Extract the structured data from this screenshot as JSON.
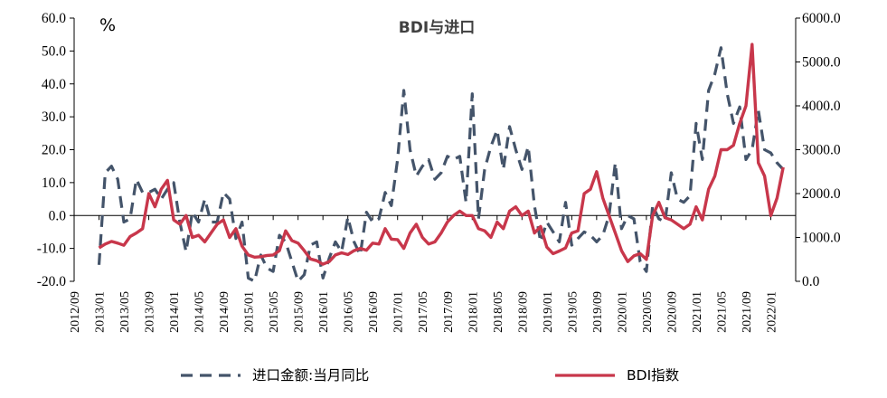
{
  "chart_data": {
    "type": "line",
    "title": "BDI与进口",
    "left_unit": "%",
    "colors": {
      "import": "#44546a",
      "bdi": "#c8374b"
    },
    "left_axis": {
      "min": -20,
      "max": 60,
      "step": 10,
      "ticks": [
        "-20.0",
        "-10.0",
        "0.0",
        "10.0",
        "20.0",
        "30.0",
        "40.0",
        "50.0",
        "60.0"
      ]
    },
    "right_axis": {
      "min": 0,
      "max": 6000,
      "step": 1000,
      "ticks": [
        "0.0",
        "1000.0",
        "2000.0",
        "3000.0",
        "4000.0",
        "5000.0",
        "6000.0"
      ]
    },
    "x_ticks": [
      "2012/09",
      "2013/01",
      "2013/05",
      "2013/09",
      "2014/01",
      "2014/05",
      "2014/09",
      "2015/01",
      "2015/05",
      "2015/09",
      "2016/01",
      "2016/05",
      "2016/09",
      "2017/01",
      "2017/05",
      "2017/09",
      "2018/01",
      "2018/05",
      "2018/09",
      "2019/01",
      "2019/05",
      "2019/09",
      "2020/01",
      "2020/05",
      "2020/09",
      "2021/01",
      "2021/05",
      "2021/09",
      "2022/01"
    ],
    "legend": [
      {
        "label": "进口金额:当月同比",
        "style": "dashed",
        "series": "import"
      },
      {
        "label": "BDI指数",
        "style": "solid",
        "series": "bdi"
      }
    ],
    "grid": false,
    "series": [
      {
        "name": "进口金额:当月同比",
        "axis": "left",
        "points": [
          [
            "2013/01",
            -15
          ],
          [
            "2013/02",
            13
          ],
          [
            "2013/03",
            15
          ],
          [
            "2013/04",
            11
          ],
          [
            "2013/05",
            -2
          ],
          [
            "2013/06",
            -1
          ],
          [
            "2013/07",
            11
          ],
          [
            "2013/08",
            7
          ],
          [
            "2013/09",
            7
          ],
          [
            "2013/10",
            8
          ],
          [
            "2013/11",
            5
          ],
          [
            "2013/12",
            8
          ],
          [
            "2014/01",
            10
          ],
          [
            "2014/02",
            -2
          ],
          [
            "2014/03",
            -11
          ],
          [
            "2014/04",
            1
          ],
          [
            "2014/05",
            -2
          ],
          [
            "2014/06",
            5
          ],
          [
            "2014/07",
            -2
          ],
          [
            "2014/08",
            -2
          ],
          [
            "2014/09",
            7
          ],
          [
            "2014/10",
            5
          ],
          [
            "2014/11",
            -7
          ],
          [
            "2014/12",
            -2
          ],
          [
            "2015/01",
            -19
          ],
          [
            "2015/02",
            -20
          ],
          [
            "2015/03",
            -12
          ],
          [
            "2015/04",
            -16
          ],
          [
            "2015/05",
            -17
          ],
          [
            "2015/06",
            -6
          ],
          [
            "2015/07",
            -8
          ],
          [
            "2015/08",
            -14
          ],
          [
            "2015/09",
            -20
          ],
          [
            "2015/10",
            -18
          ],
          [
            "2015/11",
            -9
          ],
          [
            "2015/12",
            -8
          ],
          [
            "2016/01",
            -19
          ],
          [
            "2016/02",
            -13
          ],
          [
            "2016/03",
            -8
          ],
          [
            "2016/04",
            -11
          ],
          [
            "2016/05",
            -0.5
          ],
          [
            "2016/06",
            -8
          ],
          [
            "2016/07",
            -12
          ],
          [
            "2016/08",
            1
          ],
          [
            "2016/09",
            -2
          ],
          [
            "2016/10",
            -1
          ],
          [
            "2016/11",
            7
          ],
          [
            "2016/12",
            3
          ],
          [
            "2017/01",
            17
          ],
          [
            "2017/02",
            38
          ],
          [
            "2017/03",
            20
          ],
          [
            "2017/04",
            12
          ],
          [
            "2017/05",
            15
          ],
          [
            "2017/06",
            17
          ],
          [
            "2017/07",
            11
          ],
          [
            "2017/08",
            13
          ],
          [
            "2017/09",
            18
          ],
          [
            "2017/10",
            17
          ],
          [
            "2017/11",
            18
          ],
          [
            "2017/12",
            4
          ],
          [
            "2018/01",
            37
          ],
          [
            "2018/02",
            -1
          ],
          [
            "2018/03",
            14
          ],
          [
            "2018/04",
            21
          ],
          [
            "2018/05",
            26
          ],
          [
            "2018/06",
            14
          ],
          [
            "2018/07",
            27
          ],
          [
            "2018/08",
            20
          ],
          [
            "2018/09",
            14
          ],
          [
            "2018/10",
            21
          ],
          [
            "2018/11",
            3
          ],
          [
            "2018/12",
            -8
          ],
          [
            "2019/01",
            -2
          ],
          [
            "2019/02",
            -5
          ],
          [
            "2019/03",
            -8
          ],
          [
            "2019/04",
            4
          ],
          [
            "2019/05",
            -9
          ],
          [
            "2019/06",
            -7
          ],
          [
            "2019/07",
            -5
          ],
          [
            "2019/08",
            -6
          ],
          [
            "2019/09",
            -8
          ],
          [
            "2019/10",
            -6
          ],
          [
            "2019/11",
            0
          ],
          [
            "2019/12",
            16
          ],
          [
            "2020/01",
            -4
          ],
          [
            "2020/02",
            0
          ],
          [
            "2020/03",
            -1
          ],
          [
            "2020/04",
            -14
          ],
          [
            "2020/05",
            -17
          ],
          [
            "2020/06",
            3
          ],
          [
            "2020/07",
            -1
          ],
          [
            "2020/08",
            -2
          ],
          [
            "2020/09",
            13
          ],
          [
            "2020/10",
            5
          ],
          [
            "2020/11",
            4
          ],
          [
            "2020/12",
            6
          ],
          [
            "2021/01",
            28
          ],
          [
            "2021/02",
            17
          ],
          [
            "2021/03",
            38
          ],
          [
            "2021/04",
            43
          ],
          [
            "2021/05",
            51
          ],
          [
            "2021/06",
            37
          ],
          [
            "2021/07",
            28
          ],
          [
            "2021/08",
            33
          ],
          [
            "2021/09",
            17
          ],
          [
            "2021/10",
            20
          ],
          [
            "2021/11",
            32
          ],
          [
            "2021/12",
            20
          ],
          [
            "2022/01",
            19
          ],
          [
            "2022/02",
            16
          ],
          [
            "2022/03",
            14
          ]
        ]
      },
      {
        "name": "BDI指数",
        "axis": "right",
        "points": [
          [
            "2013/01",
            760
          ],
          [
            "2013/02",
            850
          ],
          [
            "2013/03",
            910
          ],
          [
            "2013/04",
            870
          ],
          [
            "2013/05",
            820
          ],
          [
            "2013/06",
            1020
          ],
          [
            "2013/07",
            1100
          ],
          [
            "2013/08",
            1200
          ],
          [
            "2013/09",
            2000
          ],
          [
            "2013/10",
            1700
          ],
          [
            "2013/11",
            2100
          ],
          [
            "2013/12",
            2300
          ],
          [
            "2014/01",
            1400
          ],
          [
            "2014/02",
            1300
          ],
          [
            "2014/03",
            1500
          ],
          [
            "2014/04",
            1000
          ],
          [
            "2014/05",
            1050
          ],
          [
            "2014/06",
            900
          ],
          [
            "2014/07",
            1100
          ],
          [
            "2014/08",
            1300
          ],
          [
            "2014/09",
            1400
          ],
          [
            "2014/10",
            1000
          ],
          [
            "2014/11",
            1200
          ],
          [
            "2014/12",
            800
          ],
          [
            "2015/01",
            600
          ],
          [
            "2015/02",
            550
          ],
          [
            "2015/03",
            560
          ],
          [
            "2015/04",
            590
          ],
          [
            "2015/05",
            600
          ],
          [
            "2015/06",
            700
          ],
          [
            "2015/07",
            1150
          ],
          [
            "2015/08",
            930
          ],
          [
            "2015/09",
            870
          ],
          [
            "2015/10",
            700
          ],
          [
            "2015/11",
            510
          ],
          [
            "2015/12",
            470
          ],
          [
            "2016/01",
            390
          ],
          [
            "2016/02",
            450
          ],
          [
            "2016/03",
            600
          ],
          [
            "2016/04",
            650
          ],
          [
            "2016/05",
            610
          ],
          [
            "2016/06",
            700
          ],
          [
            "2016/07",
            750
          ],
          [
            "2016/08",
            710
          ],
          [
            "2016/09",
            870
          ],
          [
            "2016/10",
            850
          ],
          [
            "2016/11",
            1200
          ],
          [
            "2016/12",
            960
          ],
          [
            "2017/01",
            950
          ],
          [
            "2017/02",
            750
          ],
          [
            "2017/03",
            1100
          ],
          [
            "2017/04",
            1300
          ],
          [
            "2017/05",
            1000
          ],
          [
            "2017/06",
            850
          ],
          [
            "2017/07",
            900
          ],
          [
            "2017/08",
            1100
          ],
          [
            "2017/09",
            1350
          ],
          [
            "2017/10",
            1500
          ],
          [
            "2017/11",
            1600
          ],
          [
            "2017/12",
            1500
          ],
          [
            "2018/01",
            1500
          ],
          [
            "2018/02",
            1200
          ],
          [
            "2018/03",
            1150
          ],
          [
            "2018/04",
            1000
          ],
          [
            "2018/05",
            1350
          ],
          [
            "2018/06",
            1200
          ],
          [
            "2018/07",
            1600
          ],
          [
            "2018/08",
            1700
          ],
          [
            "2018/09",
            1500
          ],
          [
            "2018/10",
            1600
          ],
          [
            "2018/11",
            1100
          ],
          [
            "2018/12",
            1250
          ],
          [
            "2019/01",
            780
          ],
          [
            "2019/02",
            630
          ],
          [
            "2019/03",
            690
          ],
          [
            "2019/04",
            760
          ],
          [
            "2019/05",
            1100
          ],
          [
            "2019/06",
            1150
          ],
          [
            "2019/07",
            2000
          ],
          [
            "2019/08",
            2100
          ],
          [
            "2019/09",
            2500
          ],
          [
            "2019/10",
            1900
          ],
          [
            "2019/11",
            1500
          ],
          [
            "2019/12",
            1100
          ],
          [
            "2020/01",
            700
          ],
          [
            "2020/02",
            450
          ],
          [
            "2020/03",
            580
          ],
          [
            "2020/04",
            630
          ],
          [
            "2020/05",
            500
          ],
          [
            "2020/06",
            1500
          ],
          [
            "2020/07",
            1800
          ],
          [
            "2020/08",
            1450
          ],
          [
            "2020/09",
            1400
          ],
          [
            "2020/10",
            1300
          ],
          [
            "2020/11",
            1200
          ],
          [
            "2020/12",
            1300
          ],
          [
            "2021/01",
            1700
          ],
          [
            "2021/02",
            1400
          ],
          [
            "2021/03",
            2100
          ],
          [
            "2021/04",
            2400
          ],
          [
            "2021/05",
            3000
          ],
          [
            "2021/06",
            3000
          ],
          [
            "2021/07",
            3100
          ],
          [
            "2021/08",
            3600
          ],
          [
            "2021/09",
            4000
          ],
          [
            "2021/10",
            5400
          ],
          [
            "2021/11",
            2700
          ],
          [
            "2021/12",
            2400
          ],
          [
            "2022/01",
            1500
          ],
          [
            "2022/02",
            1900
          ],
          [
            "2022/03",
            2600
          ]
        ]
      }
    ]
  }
}
